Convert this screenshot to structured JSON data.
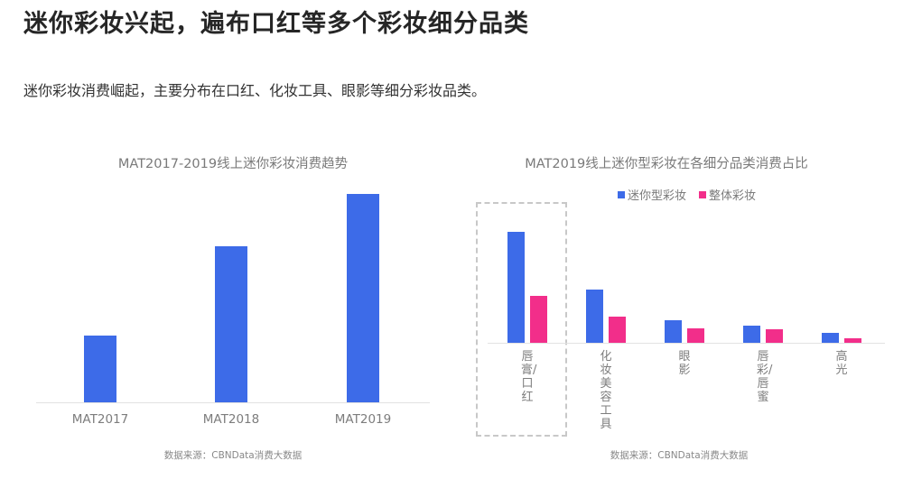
{
  "header": {
    "title": "迷你彩妆兴起，遍布口红等多个彩妆细分品类",
    "subtitle": "迷你彩妆消费崛起，主要分布在口红、化妆工具、眼影等细分彩妆品类。"
  },
  "colors": {
    "blue": "#3d6be8",
    "pink": "#f22e8a"
  },
  "left_chart": {
    "title": "MAT2017-2019线上迷你彩妆消费趋势",
    "categories": [
      "MAT2017",
      "MAT2018",
      "MAT2019"
    ],
    "source": "数据来源：CBNData消费大数据"
  },
  "right_chart": {
    "title": "MAT2019线上迷你型彩妆在各细分品类消费占比",
    "legend": [
      "迷你型彩妆",
      "整体彩妆"
    ],
    "categories": [
      "唇膏/口红",
      "化妆美容工具",
      "眼影",
      "唇彩/唇蜜",
      "高光"
    ],
    "source": "数据来源：CBNData消费大数据"
  },
  "chart_data": [
    {
      "type": "bar",
      "title": "MAT2017-2019线上迷你彩妆消费趋势",
      "categories": [
        "MAT2017",
        "MAT2018",
        "MAT2019"
      ],
      "values": [
        32,
        75,
        100
      ],
      "value_note": "relative heights (no axis values shown); MAT2019 = 100",
      "xlabel": "",
      "ylabel": "",
      "grid": false,
      "legend": null,
      "source": "数据来源：CBNData消费大数据"
    },
    {
      "type": "bar",
      "title": "MAT2019线上迷你型彩妆在各细分品类消费占比",
      "categories": [
        "唇膏/口红",
        "化妆美容工具",
        "眼影",
        "唇彩/唇蜜",
        "高光"
      ],
      "series": [
        {
          "name": "迷你型彩妆",
          "color": "#3d6be8",
          "values": [
            123,
            59,
            25,
            19,
            11
          ]
        },
        {
          "name": "整体彩妆",
          "color": "#f22e8a",
          "values": [
            52,
            29,
            16,
            15,
            5
          ]
        }
      ],
      "value_note": "relative pixel heights (no axis values shown)",
      "xlabel": "",
      "ylabel": "",
      "grid": false,
      "legend_position": "top",
      "annotations": [
        "dashed highlight box around 唇膏/口红"
      ],
      "source": "数据来源：CBNData消费大数据"
    }
  ]
}
